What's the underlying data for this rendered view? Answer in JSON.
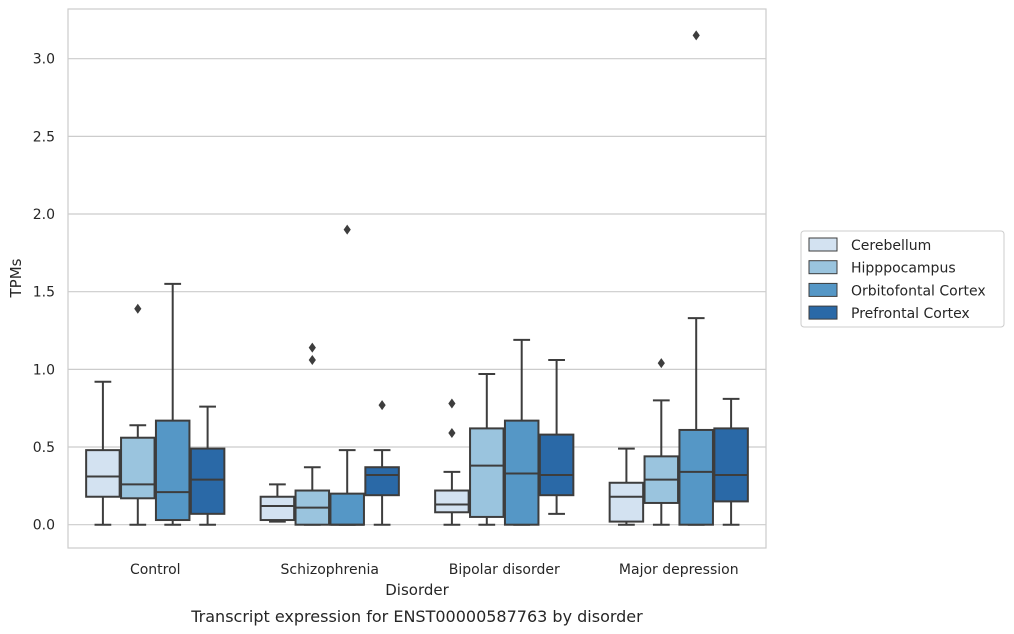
{
  "chart_data": {
    "type": "box",
    "caption": "Transcript expression for ENST00000587763 by disorder",
    "xlabel": "Disorder",
    "ylabel": "TPMs",
    "ylim": [
      -0.15,
      3.32
    ],
    "yticks": [
      0.0,
      0.5,
      1.0,
      1.5,
      2.0,
      2.5,
      3.0
    ],
    "ytick_labels": [
      "0.0",
      "0.5",
      "1.0",
      "1.5",
      "2.0",
      "2.5",
      "3.0"
    ],
    "grid": "horizontal",
    "legend_position": "right",
    "categories": [
      "Control",
      "Schizophrenia",
      "Bipolar disorder",
      "Major depression"
    ],
    "series": [
      {
        "name": "Cerebellum",
        "color": "#d3e2f1",
        "boxes": [
          {
            "whislo": 0.0,
            "q1": 0.18,
            "med": 0.31,
            "q3": 0.48,
            "whishi": 0.92,
            "fliers": []
          },
          {
            "whislo": 0.02,
            "q1": 0.03,
            "med": 0.12,
            "q3": 0.18,
            "whishi": 0.26,
            "fliers": []
          },
          {
            "whislo": 0.0,
            "q1": 0.08,
            "med": 0.13,
            "q3": 0.22,
            "whishi": 0.34,
            "fliers": [
              0.59,
              0.78
            ]
          },
          {
            "whislo": 0.0,
            "q1": 0.02,
            "med": 0.18,
            "q3": 0.27,
            "whishi": 0.49,
            "fliers": []
          }
        ]
      },
      {
        "name": "Hipppocampus",
        "color": "#9ac4de",
        "boxes": [
          {
            "whislo": 0.0,
            "q1": 0.17,
            "med": 0.26,
            "q3": 0.56,
            "whishi": 0.64,
            "fliers": [
              1.39
            ]
          },
          {
            "whislo": 0.0,
            "q1": 0.0,
            "med": 0.11,
            "q3": 0.22,
            "whishi": 0.37,
            "fliers": [
              1.06,
              1.14
            ]
          },
          {
            "whislo": 0.0,
            "q1": 0.05,
            "med": 0.38,
            "q3": 0.62,
            "whishi": 0.97,
            "fliers": []
          },
          {
            "whislo": 0.0,
            "q1": 0.14,
            "med": 0.29,
            "q3": 0.44,
            "whishi": 0.8,
            "fliers": [
              1.04
            ]
          }
        ]
      },
      {
        "name": "Orbitofontal Cortex",
        "color": "#5597c6",
        "boxes": [
          {
            "whislo": 0.0,
            "q1": 0.03,
            "med": 0.21,
            "q3": 0.67,
            "whishi": 1.55,
            "fliers": []
          },
          {
            "whislo": 0.0,
            "q1": 0.0,
            "med": 0.0,
            "q3": 0.2,
            "whishi": 0.48,
            "fliers": [
              1.9
            ]
          },
          {
            "whislo": 0.0,
            "q1": 0.0,
            "med": 0.33,
            "q3": 0.67,
            "whishi": 1.19,
            "fliers": []
          },
          {
            "whislo": 0.0,
            "q1": 0.0,
            "med": 0.34,
            "q3": 0.61,
            "whishi": 1.33,
            "fliers": [
              3.15
            ]
          }
        ]
      },
      {
        "name": "Prefrontal Cortex",
        "color": "#2a69a7",
        "boxes": [
          {
            "whislo": 0.0,
            "q1": 0.07,
            "med": 0.29,
            "q3": 0.49,
            "whishi": 0.76,
            "fliers": []
          },
          {
            "whislo": 0.0,
            "q1": 0.19,
            "med": 0.32,
            "q3": 0.37,
            "whishi": 0.48,
            "fliers": [
              0.77
            ]
          },
          {
            "whislo": 0.07,
            "q1": 0.19,
            "med": 0.32,
            "q3": 0.58,
            "whishi": 1.06,
            "fliers": []
          },
          {
            "whislo": 0.0,
            "q1": 0.15,
            "med": 0.32,
            "q3": 0.62,
            "whishi": 0.81,
            "fliers": []
          }
        ]
      }
    ]
  }
}
